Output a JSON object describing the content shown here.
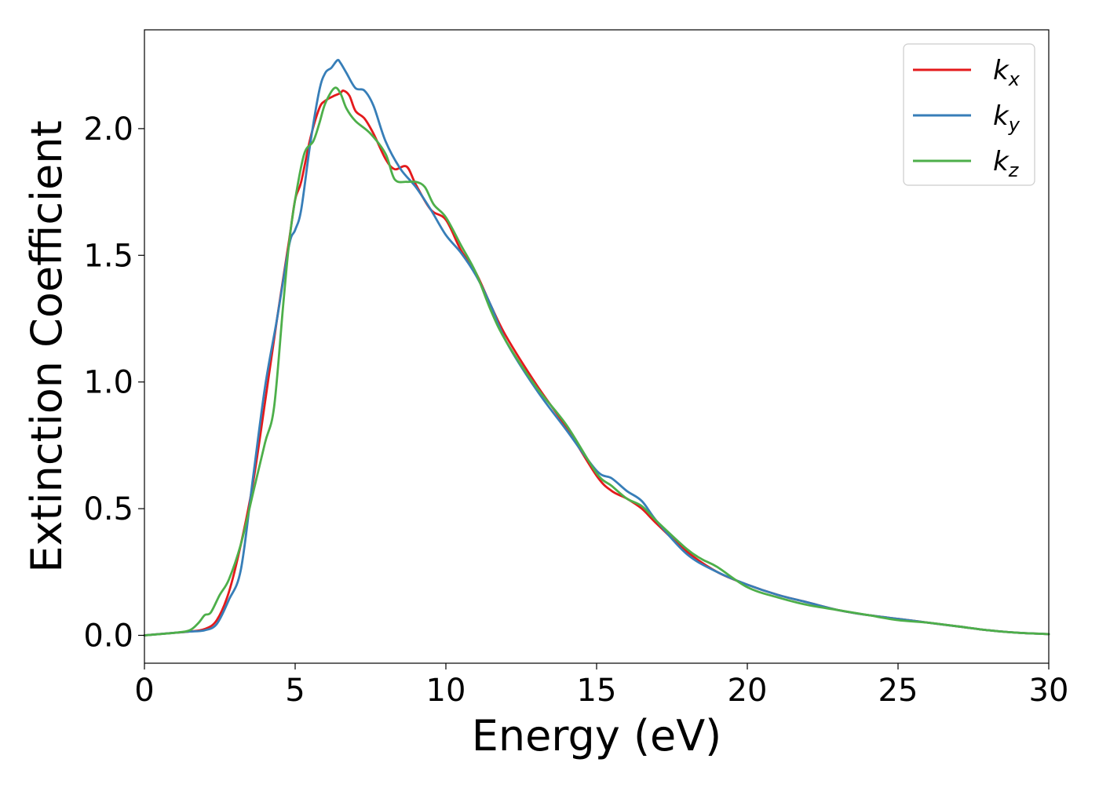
{
  "chart_data": {
    "type": "line",
    "xlabel": "Energy (eV)",
    "ylabel": "Extinction Coefficient",
    "xlim": [
      0,
      30
    ],
    "ylim": [
      -0.11,
      2.39
    ],
    "xticks": [
      0,
      5,
      10,
      15,
      20,
      25,
      30
    ],
    "xtick_labels": [
      "0",
      "5",
      "10",
      "15",
      "20",
      "25",
      "30"
    ],
    "yticks": [
      0.0,
      0.5,
      1.0,
      1.5,
      2.0
    ],
    "ytick_labels": [
      "0.0",
      "0.5",
      "1.0",
      "1.5",
      "2.0"
    ],
    "grid": false,
    "legend_position": "top-right",
    "series": [
      {
        "name": "k",
        "subscript": "x",
        "color": "#e41a1c",
        "x": [
          0,
          1,
          1.5,
          2,
          2.4,
          2.8,
          3.2,
          3.6,
          4,
          4.4,
          4.8,
          5,
          5.2,
          5.5,
          5.8,
          6,
          6.3,
          6.5,
          6.6,
          6.8,
          7,
          7.3,
          7.6,
          8,
          8.3,
          8.7,
          9,
          9.5,
          10,
          10.5,
          11,
          11.5,
          12,
          13,
          14,
          15,
          15.5,
          16,
          16.5,
          17,
          18,
          19,
          20,
          21,
          22,
          23,
          24,
          25,
          26,
          27,
          28,
          29,
          30
        ],
        "y": [
          0.0,
          0.01,
          0.015,
          0.025,
          0.06,
          0.17,
          0.36,
          0.6,
          0.92,
          1.25,
          1.56,
          1.72,
          1.79,
          1.96,
          2.08,
          2.11,
          2.13,
          2.14,
          2.15,
          2.13,
          2.07,
          2.04,
          1.98,
          1.88,
          1.84,
          1.85,
          1.78,
          1.68,
          1.64,
          1.52,
          1.43,
          1.3,
          1.18,
          0.99,
          0.82,
          0.63,
          0.57,
          0.54,
          0.5,
          0.44,
          0.33,
          0.25,
          0.2,
          0.16,
          0.13,
          0.1,
          0.08,
          0.065,
          0.05,
          0.035,
          0.02,
          0.01,
          0.005
        ]
      },
      {
        "name": "k",
        "subscript": "y",
        "color": "#377eb8",
        "x": [
          0,
          1,
          1.5,
          2,
          2.4,
          2.8,
          3.2,
          3.6,
          4,
          4.4,
          4.8,
          5,
          5.2,
          5.5,
          5.8,
          6,
          6.2,
          6.4,
          6.5,
          6.7,
          7,
          7.3,
          7.6,
          8,
          8.5,
          9,
          9.5,
          10,
          10.5,
          11,
          11.5,
          12,
          13,
          14,
          15,
          15.5,
          16,
          16.5,
          17,
          18,
          19,
          20,
          21,
          22,
          23,
          24,
          25,
          26,
          27,
          28,
          29,
          30
        ],
        "y": [
          0.0,
          0.01,
          0.015,
          0.02,
          0.045,
          0.14,
          0.26,
          0.62,
          0.98,
          1.25,
          1.54,
          1.6,
          1.68,
          1.94,
          2.15,
          2.22,
          2.24,
          2.27,
          2.26,
          2.22,
          2.16,
          2.15,
          2.09,
          1.95,
          1.84,
          1.77,
          1.68,
          1.58,
          1.51,
          1.42,
          1.3,
          1.16,
          0.97,
          0.81,
          0.65,
          0.62,
          0.57,
          0.53,
          0.45,
          0.32,
          0.25,
          0.2,
          0.16,
          0.13,
          0.1,
          0.08,
          0.065,
          0.05,
          0.035,
          0.02,
          0.01,
          0.005
        ]
      },
      {
        "name": "k",
        "subscript": "z",
        "color": "#4daf4a",
        "x": [
          0,
          1,
          1.5,
          1.8,
          2,
          2.2,
          2.5,
          2.8,
          3.2,
          3.6,
          4,
          4.3,
          4.6,
          4.8,
          5,
          5.3,
          5.6,
          5.8,
          6,
          6.3,
          6.5,
          6.7,
          7,
          7.5,
          8,
          8.3,
          8.7,
          9,
          9.3,
          9.6,
          10,
          10.5,
          11,
          11.5,
          12,
          13,
          14,
          15,
          15.5,
          16,
          16.5,
          17,
          18,
          18.5,
          19,
          20,
          21,
          22,
          23,
          24,
          25,
          26,
          27,
          28,
          29,
          30
        ],
        "y": [
          0.0,
          0.01,
          0.02,
          0.05,
          0.08,
          0.09,
          0.16,
          0.22,
          0.36,
          0.56,
          0.76,
          0.9,
          1.3,
          1.55,
          1.72,
          1.9,
          1.95,
          2.02,
          2.1,
          2.16,
          2.14,
          2.08,
          2.03,
          1.98,
          1.9,
          1.8,
          1.79,
          1.79,
          1.77,
          1.7,
          1.65,
          1.54,
          1.43,
          1.28,
          1.16,
          0.98,
          0.83,
          0.64,
          0.59,
          0.54,
          0.51,
          0.45,
          0.34,
          0.3,
          0.27,
          0.19,
          0.15,
          0.12,
          0.1,
          0.08,
          0.06,
          0.05,
          0.035,
          0.02,
          0.01,
          0.005
        ]
      }
    ]
  }
}
